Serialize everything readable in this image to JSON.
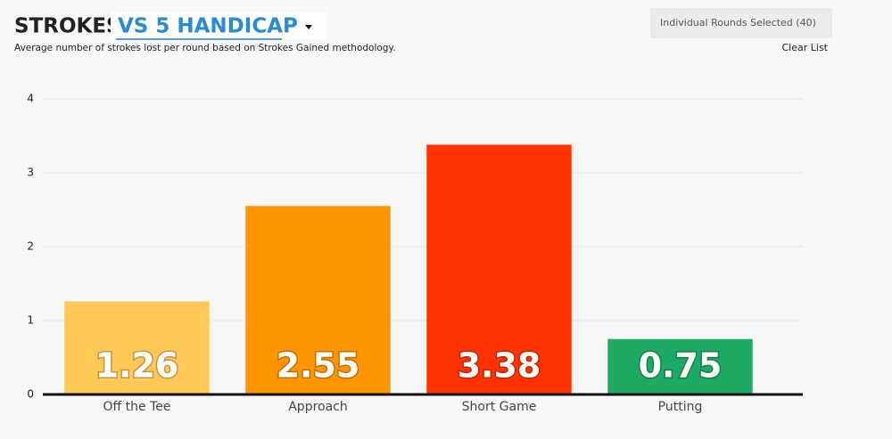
{
  "header": {
    "title": "STROKES",
    "comparison": "VS 5 HANDICAP",
    "subtitle": "Average number of strokes lost per round based on Strokes Gained methodology.",
    "selection": "Individual Rounds Selected (40)",
    "clear": "Clear List"
  },
  "chart_data": {
    "type": "bar",
    "categories": [
      "Off the Tee",
      "Approach",
      "Short Game",
      "Putting"
    ],
    "values": [
      1.26,
      2.55,
      3.38,
      0.75
    ],
    "colors": [
      "#ffc857",
      "#ff9500",
      "#ff3300",
      "#1daa64"
    ],
    "ylim": [
      0,
      4
    ],
    "yticks": [
      0,
      1,
      2,
      3,
      4
    ],
    "grid": true
  }
}
